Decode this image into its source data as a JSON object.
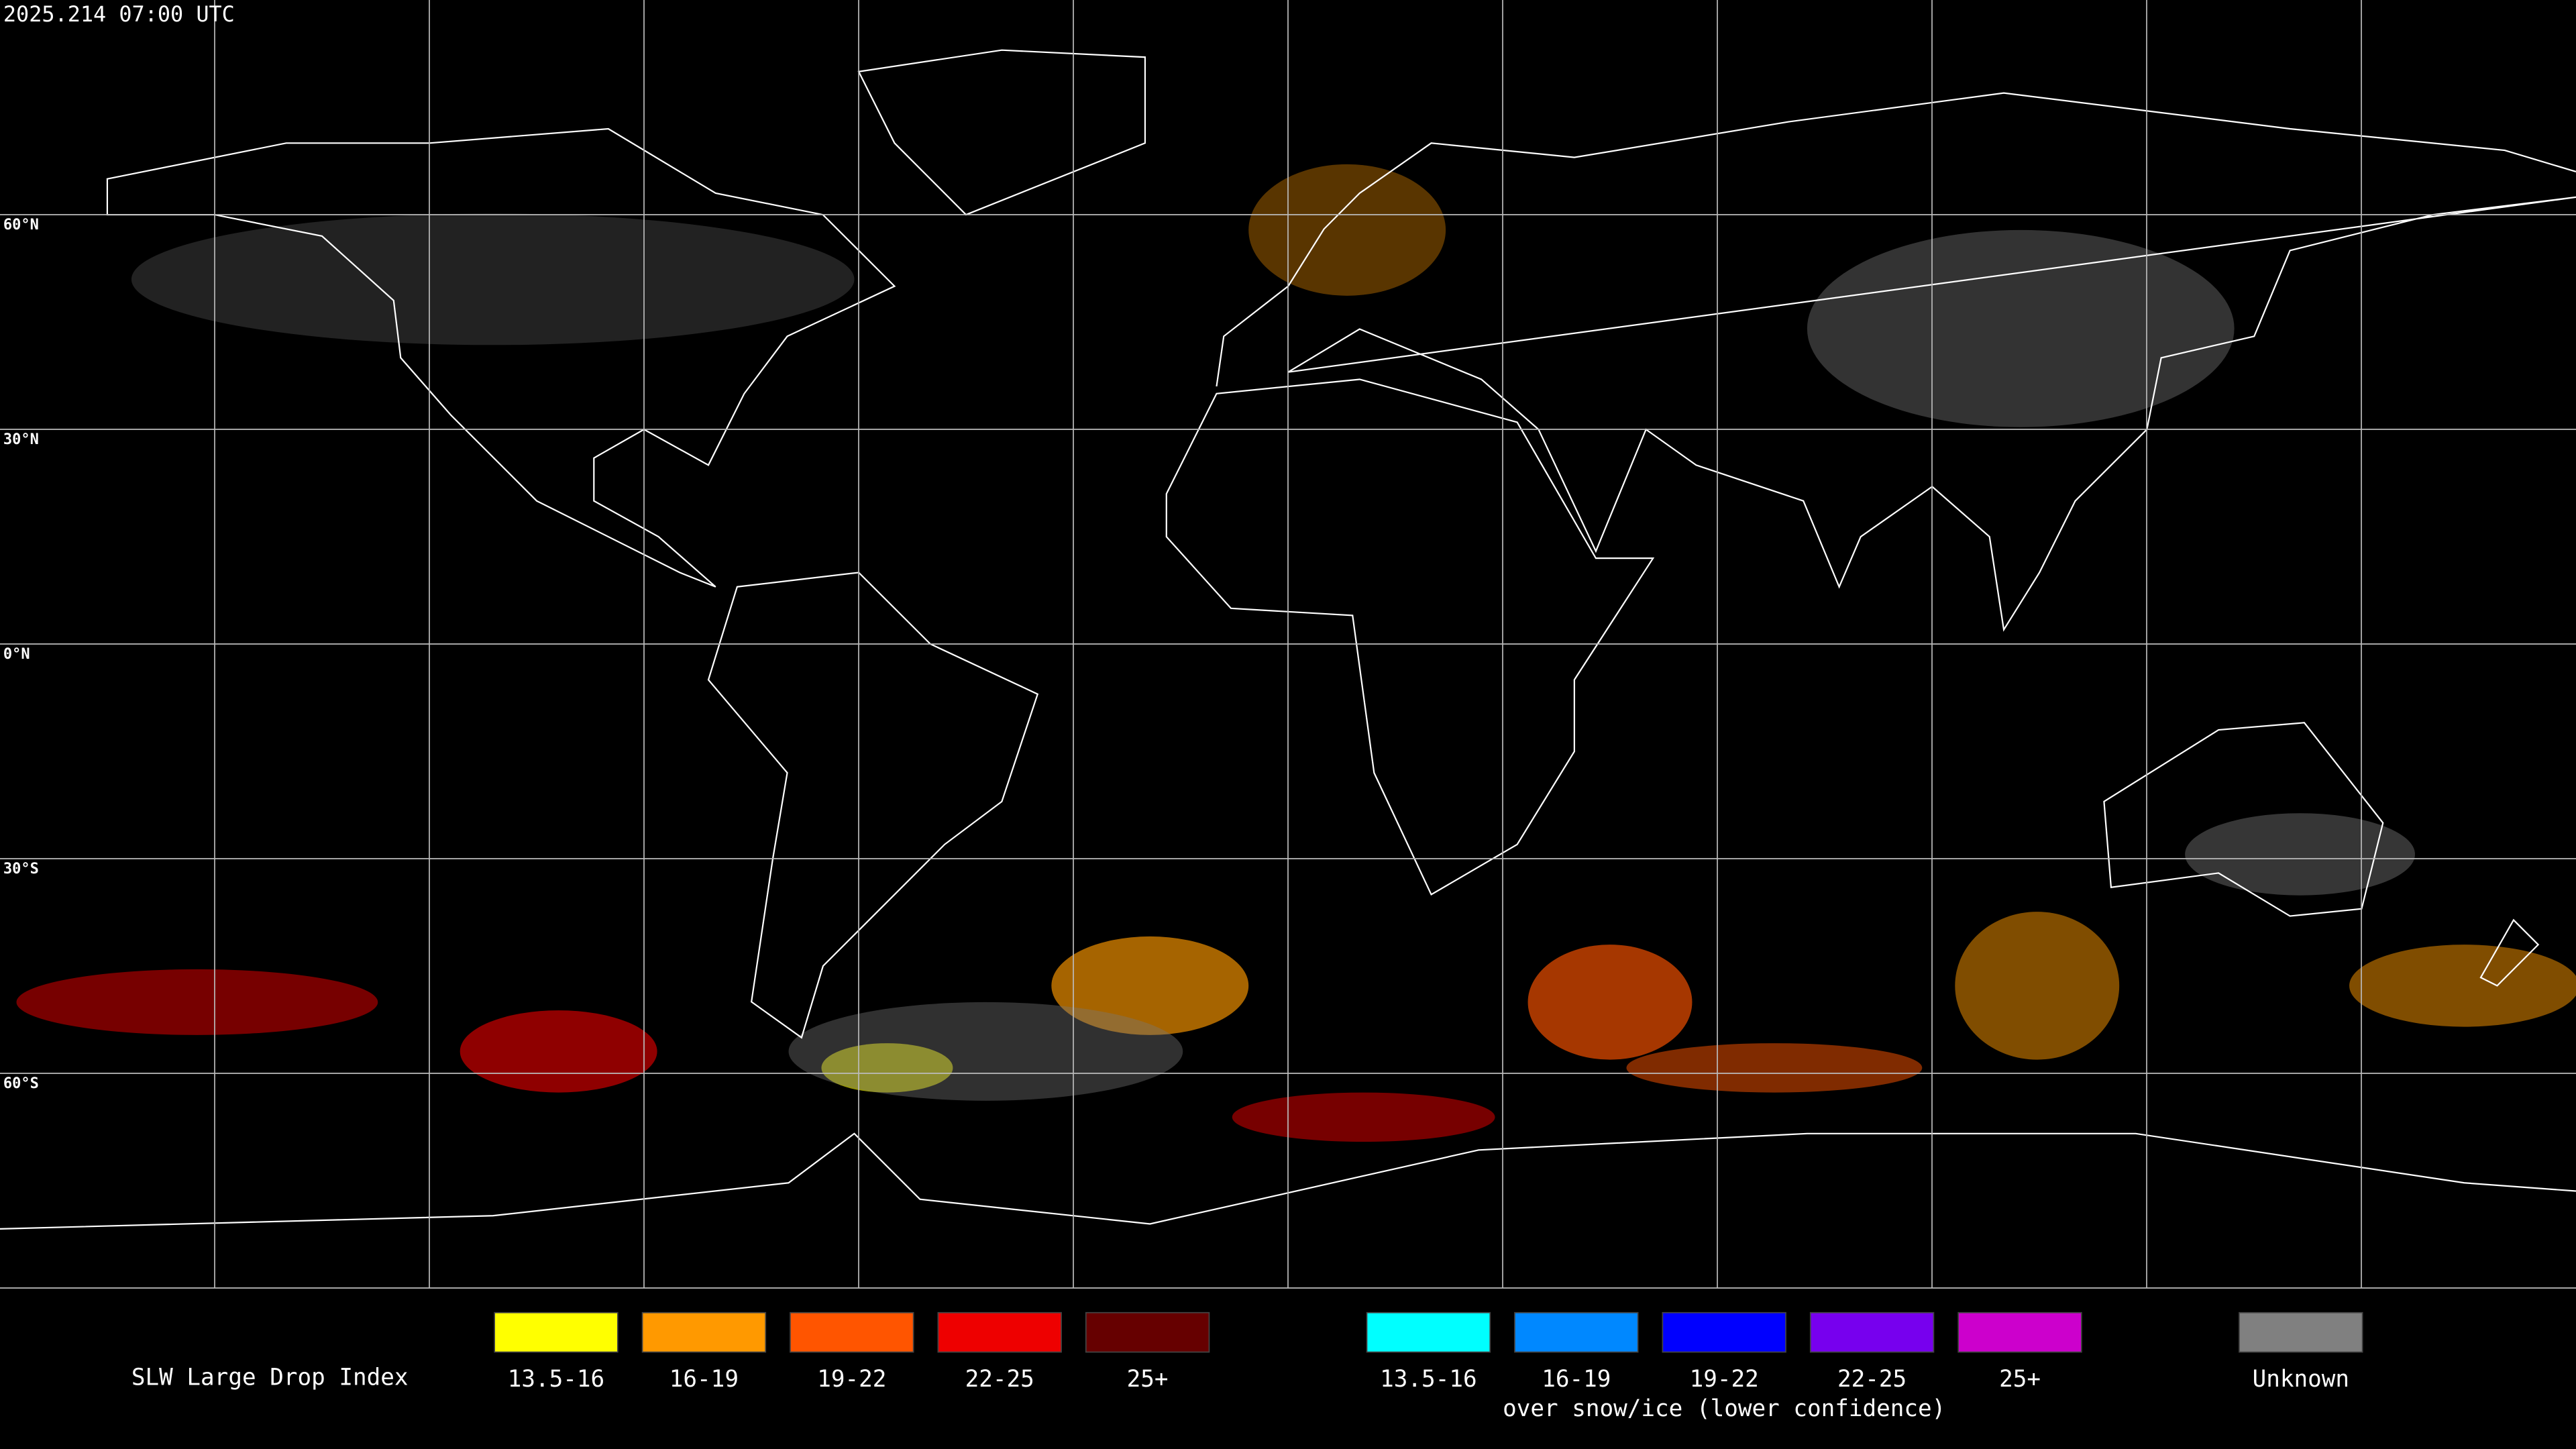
{
  "header": {
    "timestamp": "2025.214 07:00 UTC"
  },
  "map": {
    "latitude_labels": [
      "60°N",
      "30°N",
      "0°N",
      "30°S",
      "60°S"
    ]
  },
  "legend": {
    "title": "SLW Large Drop Index",
    "groups": [
      {
        "items": [
          {
            "label": "13.5-16",
            "color": "#ffff00"
          },
          {
            "label": "16-19",
            "color": "#ff9900"
          },
          {
            "label": "19-22",
            "color": "#ff5500"
          },
          {
            "label": "22-25",
            "color": "#ee0000"
          },
          {
            "label": "25+",
            "color": "#660000"
          }
        ]
      },
      {
        "caption": "over snow/ice (lower confidence)",
        "items": [
          {
            "label": "13.5-16",
            "color": "#00ffff"
          },
          {
            "label": "16-19",
            "color": "#0088ff"
          },
          {
            "label": "19-22",
            "color": "#0000ff"
          },
          {
            "label": "22-25",
            "color": "#7700ee"
          },
          {
            "label": "25+",
            "color": "#cc00cc"
          }
        ]
      },
      {
        "items": [
          {
            "label": "Unknown",
            "color": "#808080"
          }
        ]
      }
    ]
  }
}
